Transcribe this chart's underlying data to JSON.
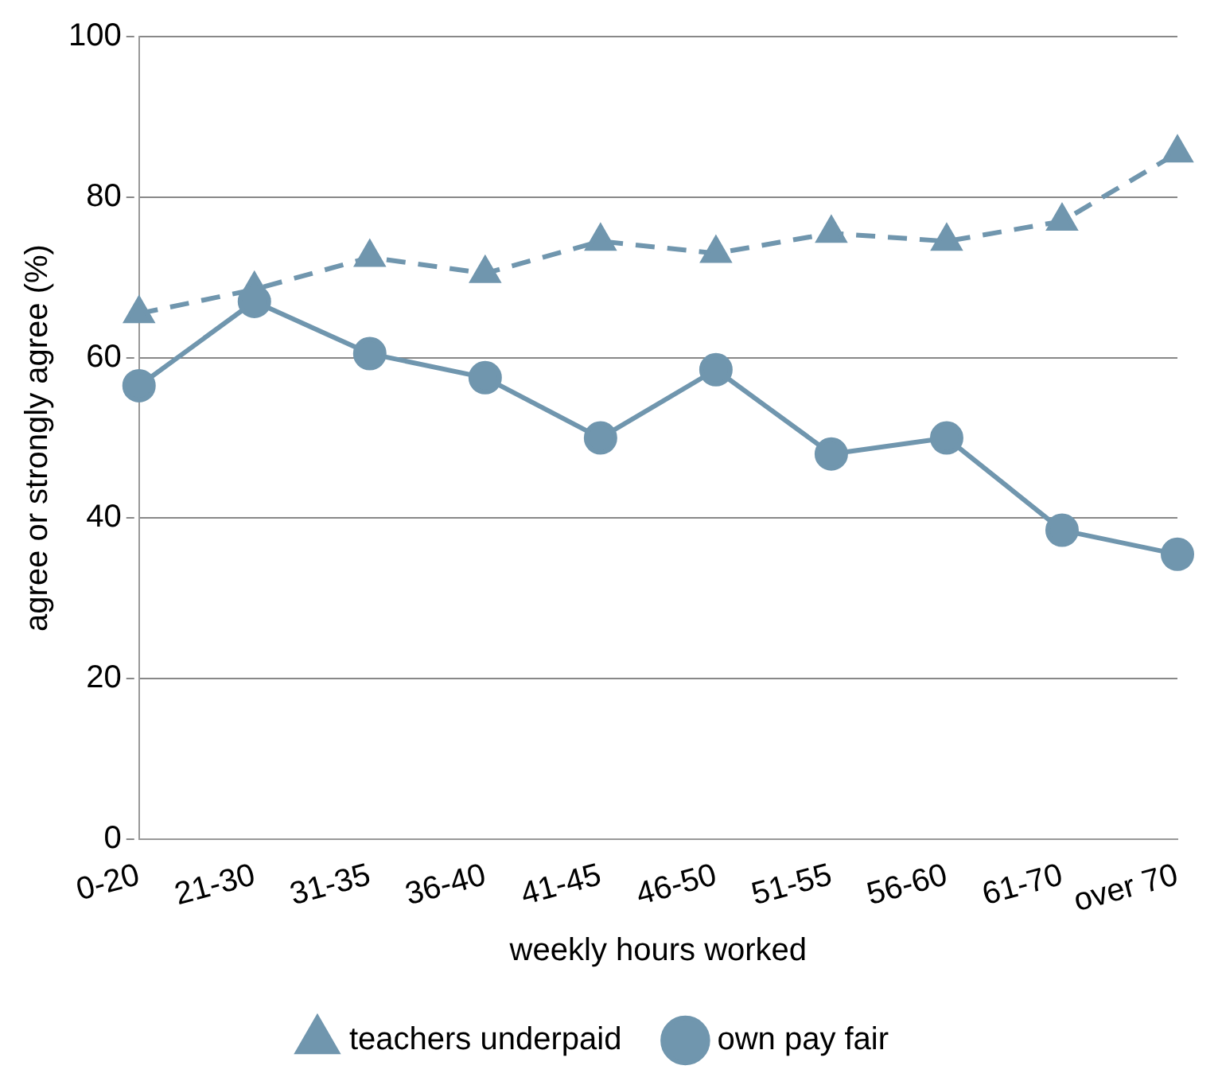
{
  "chart_data": {
    "type": "line",
    "xlabel": "weekly hours worked",
    "ylabel": "agree or strongly agree (%)",
    "categories": [
      "0-20",
      "21-30",
      "31-35",
      "36-40",
      "41-45",
      "46-50",
      "51-55",
      "56-60",
      "61-70",
      "over 70"
    ],
    "series": [
      {
        "name": "teachers underpaid",
        "color": "#7096ae",
        "marker": "triangle",
        "line_style": "dashed",
        "values": [
          65.5,
          68.5,
          72.5,
          70.5,
          74.5,
          73,
          75.5,
          74.5,
          77,
          85.5
        ]
      },
      {
        "name": "own pay fair",
        "color": "#7096ae",
        "marker": "circle",
        "line_style": "solid",
        "values": [
          56.5,
          67,
          60.5,
          57.5,
          50,
          58.5,
          48,
          50,
          38.5,
          35.5
        ]
      }
    ],
    "ylim": [
      0,
      100
    ],
    "yticks": [
      0,
      20,
      40,
      60,
      80,
      100
    ],
    "grid": "y",
    "legend": "bottom"
  }
}
